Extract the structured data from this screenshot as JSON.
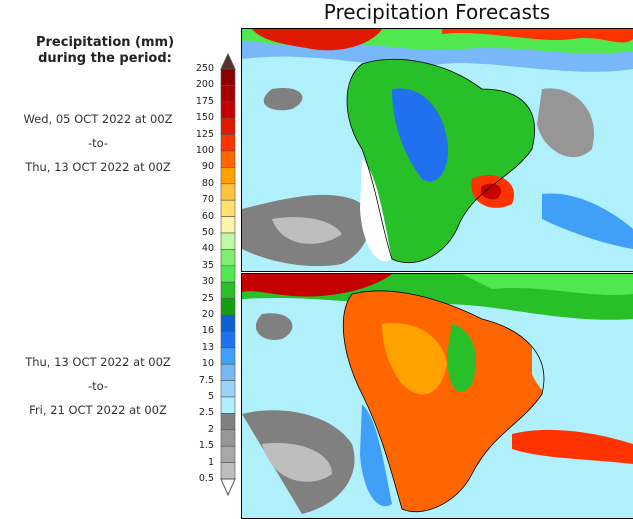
{
  "title": "Precipitation Forecasts",
  "legend": {
    "title_line1": "Precipitation (mm)",
    "title_line2": "during the period:",
    "labels": [
      "250",
      "200",
      "175",
      "150",
      "125",
      "100",
      "90",
      "80",
      "70",
      "60",
      "50",
      "40",
      "35",
      "30",
      "25",
      "20",
      "16",
      "13",
      "10",
      "7.5",
      "5",
      "2.5",
      "2",
      "1.5",
      "1",
      "0.5"
    ],
    "colors": [
      "#5a2e2a",
      "#8b0000",
      "#a50000",
      "#c40000",
      "#e01a00",
      "#ff3300",
      "#ff6600",
      "#ffa200",
      "#ffc23c",
      "#ffe070",
      "#fff5a8",
      "#c0f8a8",
      "#80ee70",
      "#50e850",
      "#28c028",
      "#10a010",
      "#1060d0",
      "#2070f0",
      "#40a0f8",
      "#78b8f8",
      "#98d4fc",
      "#b0f0fc",
      "#808080",
      "#969696",
      "#a8a8a8",
      "#bebebe",
      "#ffffff"
    ]
  },
  "periods": [
    {
      "start": "Wed, 05 OCT 2022 at 00Z",
      "sep": "-to-",
      "end": "Thu, 13 OCT 2022 at 00Z"
    },
    {
      "start": "Thu, 13 OCT 2022 at 00Z",
      "sep": "-to-",
      "end": "Fri, 21 OCT 2022 at 00Z"
    }
  ]
}
